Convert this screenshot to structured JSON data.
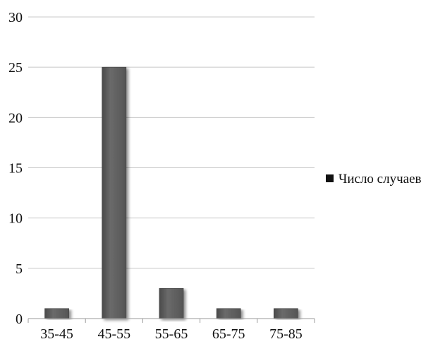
{
  "chart_data": {
    "type": "bar",
    "categories": [
      "35-45",
      "45-55",
      "55-65",
      "65-75",
      "75-85"
    ],
    "series": [
      {
        "name": "Число случаев",
        "values": [
          1,
          25,
          3,
          1,
          1
        ]
      }
    ],
    "ylim": [
      0,
      30
    ],
    "yticks": [
      0,
      5,
      10,
      15,
      20,
      25,
      30
    ],
    "grid": true,
    "legend": "right",
    "colors": {
      "bar": "#5f5f5f",
      "bar_edge": "#3e3e3e",
      "legend_marker": "#111111"
    }
  }
}
